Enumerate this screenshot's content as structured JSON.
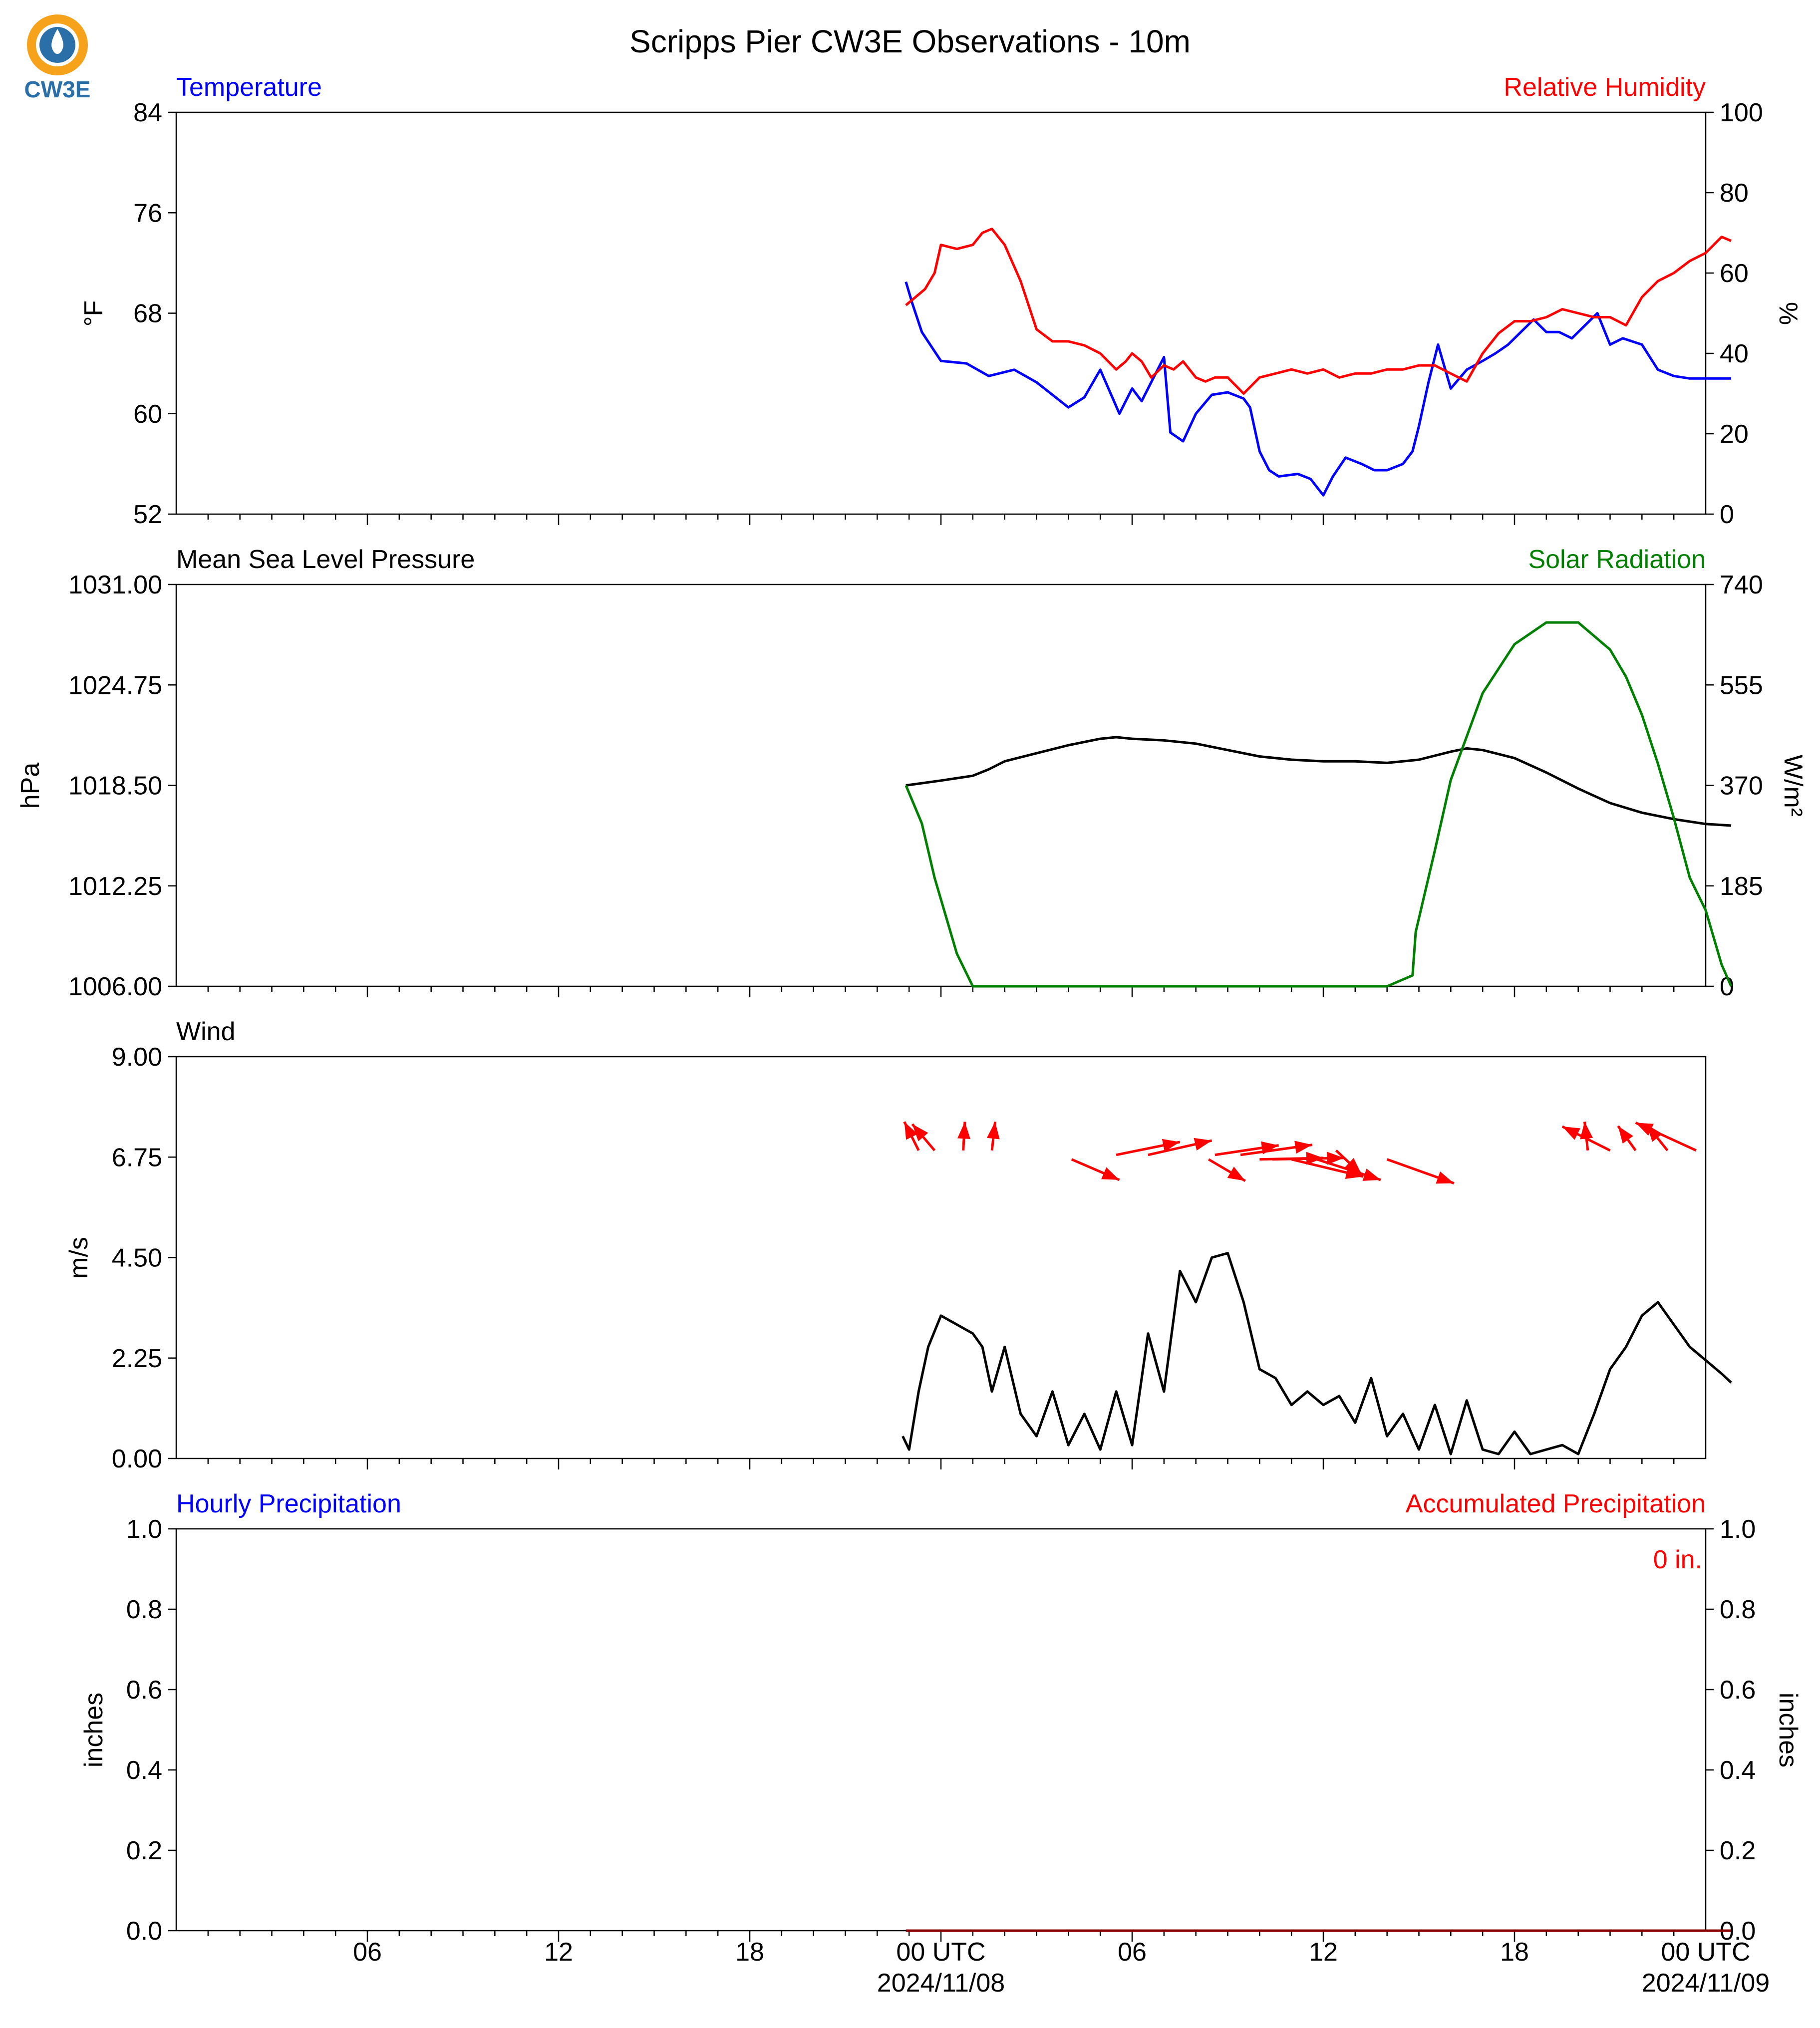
{
  "title": "Scripps Pier CW3E Observations - 10m",
  "logo": {
    "text": "CW3E",
    "colors": {
      "ring": "#f7a21b",
      "drop": "#2a6fa8",
      "text": "#2a6fa8"
    }
  },
  "colors": {
    "blue": "#0000ff",
    "red": "#ff0000",
    "green": "#008000",
    "black": "#000000"
  },
  "x_axis": {
    "range_hours": [
      -24,
      24
    ],
    "tick_labels": [
      {
        "hour": -18,
        "line1": "06",
        "line2": ""
      },
      {
        "hour": -12,
        "line1": "12",
        "line2": ""
      },
      {
        "hour": -6,
        "line1": "18",
        "line2": ""
      },
      {
        "hour": 0,
        "line1": "00 UTC",
        "line2": "2024/11/08"
      },
      {
        "hour": 6,
        "line1": "06",
        "line2": ""
      },
      {
        "hour": 12,
        "line1": "12",
        "line2": ""
      },
      {
        "hour": 18,
        "line1": "18",
        "line2": ""
      },
      {
        "hour": 24,
        "line1": "00 UTC",
        "line2": "2024/11/09"
      }
    ]
  },
  "panels": {
    "temperature": {
      "left_title": "Temperature",
      "right_title": "Relative Humidity",
      "left_unit": "°F",
      "right_unit": "%",
      "left_ticks": [
        "52",
        "60",
        "68",
        "76",
        "84"
      ],
      "right_ticks": [
        "0",
        "20",
        "40",
        "60",
        "80",
        "100"
      ]
    },
    "pressure": {
      "left_title": "Mean Sea Level Pressure",
      "right_title": "Solar Radiation",
      "left_unit": "hPa",
      "right_unit": "W/m²",
      "left_ticks": [
        "1006.00",
        "1012.25",
        "1018.50",
        "1024.75",
        "1031.00"
      ],
      "right_ticks": [
        "0",
        "185",
        "370",
        "555",
        "740"
      ]
    },
    "wind": {
      "left_title": "Wind",
      "left_unit": "m/s",
      "left_ticks": [
        "0.00",
        "2.25",
        "4.50",
        "6.75",
        "9.00"
      ]
    },
    "precip": {
      "left_title": "Hourly Precipitation",
      "right_title": "Accumulated Precipitation",
      "left_unit": "inches",
      "right_unit": "inches",
      "left_ticks": [
        "0.0",
        "0.2",
        "0.4",
        "0.6",
        "0.8",
        "1.0"
      ],
      "right_ticks": [
        "0.0",
        "0.2",
        "0.4",
        "0.6",
        "0.8",
        "1.0"
      ],
      "accum_label": "0 in."
    }
  },
  "chart_data": [
    {
      "type": "line",
      "title": "Temperature / Relative Humidity",
      "x_unit": "hours from 2024-11-08 00 UTC",
      "ylim": [
        52,
        84
      ],
      "y2lim": [
        0,
        100
      ],
      "series": [
        {
          "name": "Temperature",
          "axis": "left",
          "color": "#0000ff",
          "x": [
            -1.1,
            -0.9,
            -0.6,
            0,
            0.8,
            1.5,
            2.3,
            3,
            4,
            4.5,
            5,
            5.6,
            6,
            6.3,
            7,
            7.2,
            7.6,
            8,
            8.5,
            9,
            9.5,
            9.7,
            10,
            10.3,
            10.6,
            11.2,
            11.6,
            12,
            12.3,
            12.7,
            13.2,
            13.6,
            14,
            14.5,
            14.8,
            15,
            15.3,
            15.6,
            16,
            16.5,
            17,
            17.4,
            17.8,
            18.2,
            18.6,
            19,
            19.4,
            19.8,
            20.2,
            20.6,
            21,
            21.4,
            22,
            22.5,
            23,
            23.5,
            24.8
          ],
          "y": [
            70.5,
            68.8,
            66.5,
            64.2,
            64,
            63,
            63.5,
            62.5,
            60.5,
            61.3,
            63.5,
            60,
            62,
            61,
            64.5,
            58.5,
            57.8,
            60,
            61.5,
            61.7,
            61.2,
            60.5,
            57,
            55.5,
            55,
            55.2,
            54.8,
            53.5,
            55,
            56.5,
            56,
            55.5,
            55.5,
            56,
            57,
            59,
            62.5,
            65.5,
            62,
            63.5,
            64.2,
            64.8,
            65.5,
            66.5,
            67.5,
            66.5,
            66.5,
            66,
            67,
            68,
            65.5,
            66,
            65.5,
            63.5,
            63,
            62.8,
            62.8
          ]
        },
        {
          "name": "Relative Humidity",
          "axis": "right",
          "color": "#ff0000",
          "x": [
            -1.1,
            -0.5,
            -0.2,
            0,
            0.5,
            1,
            1.3,
            1.6,
            2,
            2.5,
            3,
            3.5,
            4,
            4.5,
            5,
            5.5,
            5.8,
            6,
            6.3,
            6.6,
            7,
            7.3,
            7.6,
            8,
            8.3,
            8.6,
            9,
            9.5,
            10,
            10.5,
            11,
            11.5,
            12,
            12.5,
            13,
            13.5,
            14,
            14.5,
            15,
            15.5,
            16,
            16.5,
            17,
            17.5,
            18,
            18.5,
            19,
            19.5,
            20,
            20.5,
            21,
            21.5,
            22,
            22.5,
            23,
            23.5,
            24,
            24.5,
            24.8
          ],
          "y": [
            52,
            56,
            60,
            67,
            66,
            67,
            70,
            71,
            67,
            58,
            46,
            43,
            43,
            42,
            40,
            36,
            38,
            40,
            38,
            34,
            37,
            36,
            38,
            34,
            33,
            34,
            34,
            30,
            34,
            35,
            36,
            35,
            36,
            34,
            35,
            35,
            36,
            36,
            37,
            37,
            35,
            33,
            40,
            45,
            48,
            48,
            49,
            51,
            50,
            49,
            49,
            47,
            54,
            58,
            60,
            63,
            65,
            69,
            68
          ]
        }
      ]
    },
    {
      "type": "line",
      "title": "Mean Sea Level Pressure / Solar Radiation",
      "x_unit": "hours from 2024-11-08 00 UTC",
      "ylim": [
        1006.0,
        1031.0
      ],
      "y2lim": [
        0,
        740
      ],
      "series": [
        {
          "name": "Mean Sea Level Pressure",
          "axis": "left",
          "color": "#000000",
          "x": [
            -1.1,
            0,
            1,
            1.5,
            2,
            3,
            4,
            5,
            5.5,
            6,
            7,
            8,
            9,
            10,
            11,
            12,
            13,
            14,
            15,
            16,
            16.5,
            17,
            18,
            19,
            20,
            21,
            22,
            23,
            24,
            24.8
          ],
          "y": [
            1018.5,
            1018.8,
            1019.1,
            1019.5,
            1020,
            1020.5,
            1021,
            1021.4,
            1021.5,
            1021.4,
            1021.3,
            1021.1,
            1020.7,
            1020.3,
            1020.1,
            1020,
            1020,
            1019.9,
            1020.1,
            1020.6,
            1020.8,
            1020.7,
            1020.2,
            1019.3,
            1018.3,
            1017.4,
            1016.8,
            1016.4,
            1016.1,
            1016.0
          ]
        },
        {
          "name": "Solar Radiation",
          "axis": "right",
          "color": "#008000",
          "x": [
            -1.1,
            -0.6,
            -0.2,
            0.5,
            1,
            2,
            6,
            10,
            14,
            14.8,
            14.9,
            15.5,
            16,
            17,
            18,
            19,
            20,
            21,
            21.5,
            22,
            22.5,
            23,
            23.5,
            24,
            24.5,
            24.8
          ],
          "y": [
            370,
            300,
            200,
            60,
            0,
            0,
            0,
            0,
            0,
            20,
            100,
            250,
            380,
            540,
            630,
            670,
            670,
            620,
            570,
            500,
            410,
            310,
            200,
            140,
            40,
            0
          ]
        }
      ]
    },
    {
      "type": "line",
      "title": "Wind",
      "x_unit": "hours from 2024-11-08 00 UTC",
      "ylim": [
        0,
        9
      ],
      "series": [
        {
          "name": "Wind",
          "color": "#000000",
          "x": [
            -1.2,
            -1,
            -0.7,
            -0.4,
            0,
            0.5,
            1,
            1.3,
            1.6,
            2,
            2.5,
            3,
            3.5,
            4,
            4.5,
            5,
            5.5,
            6,
            6.5,
            7,
            7.5,
            8,
            8.5,
            9,
            9.5,
            10,
            10.5,
            11,
            11.5,
            12,
            12.5,
            13,
            13.5,
            14,
            14.5,
            15,
            15.5,
            16,
            16.5,
            17,
            17.5,
            18,
            18.5,
            19,
            19.5,
            20,
            20.5,
            21,
            21.5,
            22,
            22.5,
            23,
            23.5,
            24,
            24.5,
            24.8
          ],
          "y": [
            0.5,
            0.2,
            1.5,
            2.5,
            3.2,
            3,
            2.8,
            2.5,
            1.5,
            2.5,
            1,
            0.5,
            1.5,
            0.3,
            1,
            0.2,
            1.5,
            0.3,
            2.8,
            1.5,
            4.2,
            3.5,
            4.5,
            4.6,
            3.5,
            2,
            1.8,
            1.2,
            1.5,
            1.2,
            1.4,
            0.8,
            1.8,
            0.5,
            1,
            0.2,
            1.2,
            0.1,
            1.3,
            0.2,
            0.1,
            0.6,
            0.1,
            0.2,
            0.3,
            0.1,
            1,
            2,
            2.5,
            3.2,
            3.5,
            3,
            2.5,
            2.2,
            1.9,
            1.7
          ]
        },
        {
          "name": "Wind direction arrows",
          "color": "#ff0000",
          "x": [
            -0.7,
            -0.2,
            0.7,
            1.6,
            4.1,
            5.5,
            6.5,
            8.4,
            8.6,
            9.4,
            10,
            10.4,
            11,
            11.8,
            12.4,
            14,
            20.3,
            21,
            21.8,
            22.8,
            23.7
          ],
          "y": [
            6.9,
            6.9,
            6.9,
            6.9,
            6.7,
            6.8,
            6.8,
            6.7,
            6.8,
            6.8,
            6.7,
            6.7,
            6.7,
            6.7,
            6.9,
            6.7,
            6.9,
            6.9,
            6.9,
            6.9,
            6.9
          ],
          "u": [
            -0.9,
            -1.4,
            0.1,
            0.2,
            3.0,
            4.0,
            4.0,
            2.3,
            4.0,
            4.5,
            4.0,
            4.5,
            4.5,
            4.0,
            1.6,
            4.2,
            -0.2,
            -3.0,
            -1.1,
            -1.3,
            -3.8
          ],
          "v": [
            6.0,
            5.5,
            6.0,
            6.0,
            -4.3,
            2.7,
            3.0,
            -4.5,
            2.0,
            2.1,
            0.3,
            0.3,
            -3.6,
            -4.3,
            -5.0,
            -5.0,
            6.0,
            5.0,
            5.1,
            5.4,
            5.8
          ]
        }
      ]
    },
    {
      "type": "line",
      "title": "Hourly Precipitation / Accumulated Precipitation",
      "x_unit": "hours from 2024-11-08 00 UTC",
      "ylim": [
        0,
        1
      ],
      "y2lim": [
        0,
        1
      ],
      "series": [
        {
          "name": "Hourly Precipitation",
          "axis": "left",
          "color": "#0000ff",
          "x": [
            -1.1,
            24.8
          ],
          "y": [
            0,
            0
          ]
        },
        {
          "name": "Accumulated Precipitation",
          "axis": "right",
          "color": "#8b0000",
          "x": [
            -1.1,
            24.8
          ],
          "y": [
            0,
            0
          ]
        }
      ]
    }
  ]
}
